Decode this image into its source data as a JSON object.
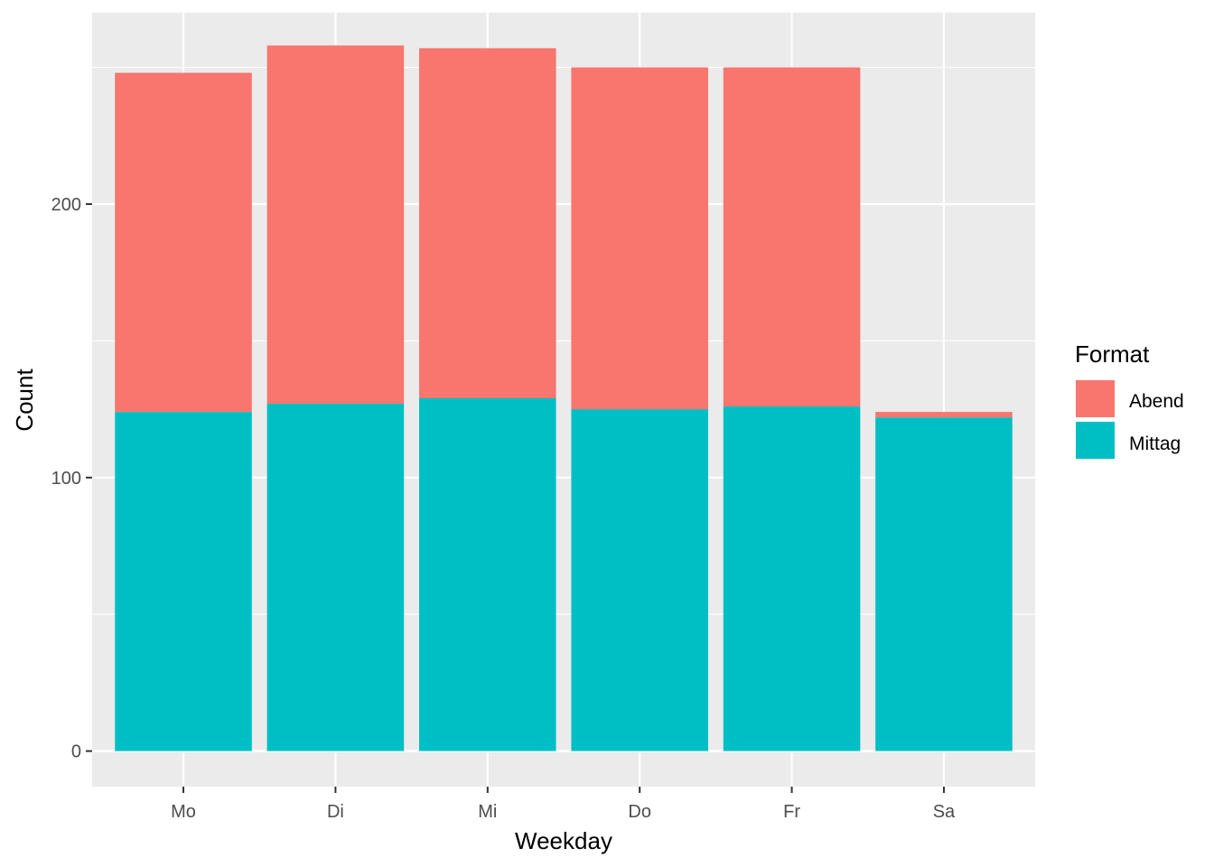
{
  "chart_data": {
    "type": "bar",
    "stacked": true,
    "categories": [
      "Mo",
      "Di",
      "Mi",
      "Do",
      "Fr",
      "Sa"
    ],
    "series": [
      {
        "name": "Mittag",
        "color": "#00BFC4",
        "values": [
          124,
          127,
          129,
          125,
          126,
          122
        ]
      },
      {
        "name": "Abend",
        "color": "#F8766D",
        "values": [
          124,
          131,
          128,
          125,
          124,
          2
        ]
      }
    ],
    "xlabel": "Weekday",
    "ylabel": "Count",
    "ylim": [
      -13,
      270
    ],
    "y_ticks": [
      0,
      100,
      200
    ],
    "y_tick_labels": [
      "0",
      "100",
      "200"
    ],
    "grid": true,
    "legend": {
      "title": "Format",
      "position": "right",
      "entries": [
        {
          "label": "Abend",
          "color": "#F8766D"
        },
        {
          "label": "Mittag",
          "color": "#00BFC4"
        }
      ]
    }
  }
}
